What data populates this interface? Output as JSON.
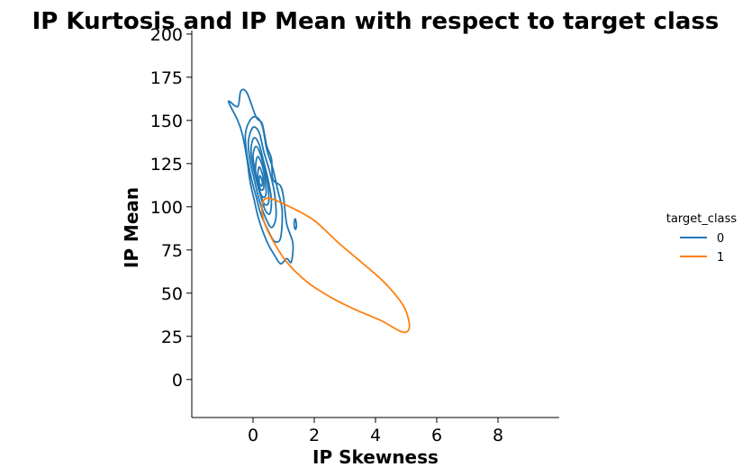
{
  "chart_data": {
    "type": "kde-contour",
    "title": "IP Kurtosis and IP Mean with respect to target class",
    "xlabel": "IP Skewness",
    "ylabel": "IP Mean",
    "xlim": [
      -2,
      10
    ],
    "ylim": [
      -22,
      202
    ],
    "xticks": [
      0,
      2,
      4,
      6,
      8
    ],
    "yticks": [
      0,
      25,
      50,
      75,
      100,
      125,
      150,
      175,
      200
    ],
    "grid": false,
    "legend": {
      "title": "target_class",
      "position": "center-right",
      "entries": [
        {
          "label": "0",
          "color": "#1f77b4"
        },
        {
          "label": "1",
          "color": "#ff7f0e"
        }
      ]
    },
    "series": [
      {
        "name": "0",
        "color": "#1f77b4",
        "contours": [
          [
            [
              -0.8,
              161
            ],
            [
              -0.5,
              158
            ],
            [
              -0.4,
              167
            ],
            [
              -0.2,
              166
            ],
            [
              0.1,
              152
            ],
            [
              0.3,
              148
            ],
            [
              0.45,
              135
            ],
            [
              0.6,
              128
            ],
            [
              0.65,
              116
            ],
            [
              0.9,
              112
            ],
            [
              1.0,
              105
            ],
            [
              1.1,
              90
            ],
            [
              1.3,
              79
            ],
            [
              1.25,
              68
            ],
            [
              1.1,
              70
            ],
            [
              0.9,
              67
            ],
            [
              0.7,
              72
            ],
            [
              0.45,
              80
            ],
            [
              0.2,
              92
            ],
            [
              0.05,
              103
            ],
            [
              -0.1,
              115
            ],
            [
              -0.2,
              128
            ],
            [
              -0.35,
              142
            ],
            [
              -0.5,
              150
            ],
            [
              -0.8,
              161
            ]
          ],
          [
            [
              -0.1,
              150
            ],
            [
              0.1,
              152
            ],
            [
              0.3,
              147
            ],
            [
              0.45,
              133
            ],
            [
              0.65,
              122
            ],
            [
              0.8,
              110
            ],
            [
              0.95,
              98
            ],
            [
              0.9,
              82
            ],
            [
              0.7,
              80
            ],
            [
              0.5,
              86
            ],
            [
              0.25,
              96
            ],
            [
              0.1,
              106
            ],
            [
              -0.05,
              116
            ],
            [
              -0.2,
              130
            ],
            [
              -0.25,
              142
            ],
            [
              -0.1,
              150
            ]
          ],
          [
            [
              0.0,
              146
            ],
            [
              0.2,
              143
            ],
            [
              0.35,
              132
            ],
            [
              0.55,
              120
            ],
            [
              0.7,
              108
            ],
            [
              0.75,
              94
            ],
            [
              0.6,
              88
            ],
            [
              0.4,
              94
            ],
            [
              0.2,
              104
            ],
            [
              0.05,
              115
            ],
            [
              -0.1,
              127
            ],
            [
              -0.15,
              138
            ],
            [
              0.0,
              146
            ]
          ],
          [
            [
              0.05,
              140
            ],
            [
              0.2,
              136
            ],
            [
              0.35,
              126
            ],
            [
              0.5,
              115
            ],
            [
              0.6,
              104
            ],
            [
              0.55,
              96
            ],
            [
              0.4,
              98
            ],
            [
              0.25,
              106
            ],
            [
              0.1,
              116
            ],
            [
              -0.05,
              128
            ],
            [
              -0.05,
              136
            ],
            [
              0.05,
              140
            ]
          ],
          [
            [
              0.1,
              135
            ],
            [
              0.25,
              130
            ],
            [
              0.4,
              120
            ],
            [
              0.5,
              110
            ],
            [
              0.5,
              102
            ],
            [
              0.35,
              102
            ],
            [
              0.2,
              110
            ],
            [
              0.05,
              122
            ],
            [
              0.0,
              130
            ],
            [
              0.1,
              135
            ]
          ],
          [
            [
              0.15,
              129
            ],
            [
              0.3,
              124
            ],
            [
              0.4,
              115
            ],
            [
              0.42,
              107
            ],
            [
              0.3,
              106
            ],
            [
              0.15,
              113
            ],
            [
              0.08,
              122
            ],
            [
              0.15,
              129
            ]
          ],
          [
            [
              0.2,
              123
            ],
            [
              0.32,
              118
            ],
            [
              0.35,
              111
            ],
            [
              0.25,
              110
            ],
            [
              0.15,
              116
            ],
            [
              0.2,
              123
            ]
          ],
          [
            [
              0.22,
              118
            ],
            [
              0.3,
              115
            ],
            [
              0.28,
              112
            ],
            [
              0.2,
              114
            ],
            [
              0.22,
              118
            ]
          ],
          [
            [
              1.38,
              93
            ],
            [
              1.42,
              89
            ],
            [
              1.38,
              87
            ],
            [
              1.34,
              90
            ],
            [
              1.38,
              93
            ]
          ]
        ]
      },
      {
        "name": "1",
        "color": "#ff7f0e",
        "contours": [
          [
            [
              0.3,
              101
            ],
            [
              0.5,
              105
            ],
            [
              1.2,
              100
            ],
            [
              2.0,
              92
            ],
            [
              2.8,
              79
            ],
            [
              3.6,
              67
            ],
            [
              4.3,
              56
            ],
            [
              4.9,
              43
            ],
            [
              5.1,
              33
            ],
            [
              5.05,
              28
            ],
            [
              4.8,
              28
            ],
            [
              4.2,
              34
            ],
            [
              3.4,
              40
            ],
            [
              2.6,
              47
            ],
            [
              1.8,
              56
            ],
            [
              1.1,
              68
            ],
            [
              0.6,
              82
            ],
            [
              0.35,
              92
            ],
            [
              0.3,
              101
            ]
          ]
        ]
      }
    ]
  }
}
